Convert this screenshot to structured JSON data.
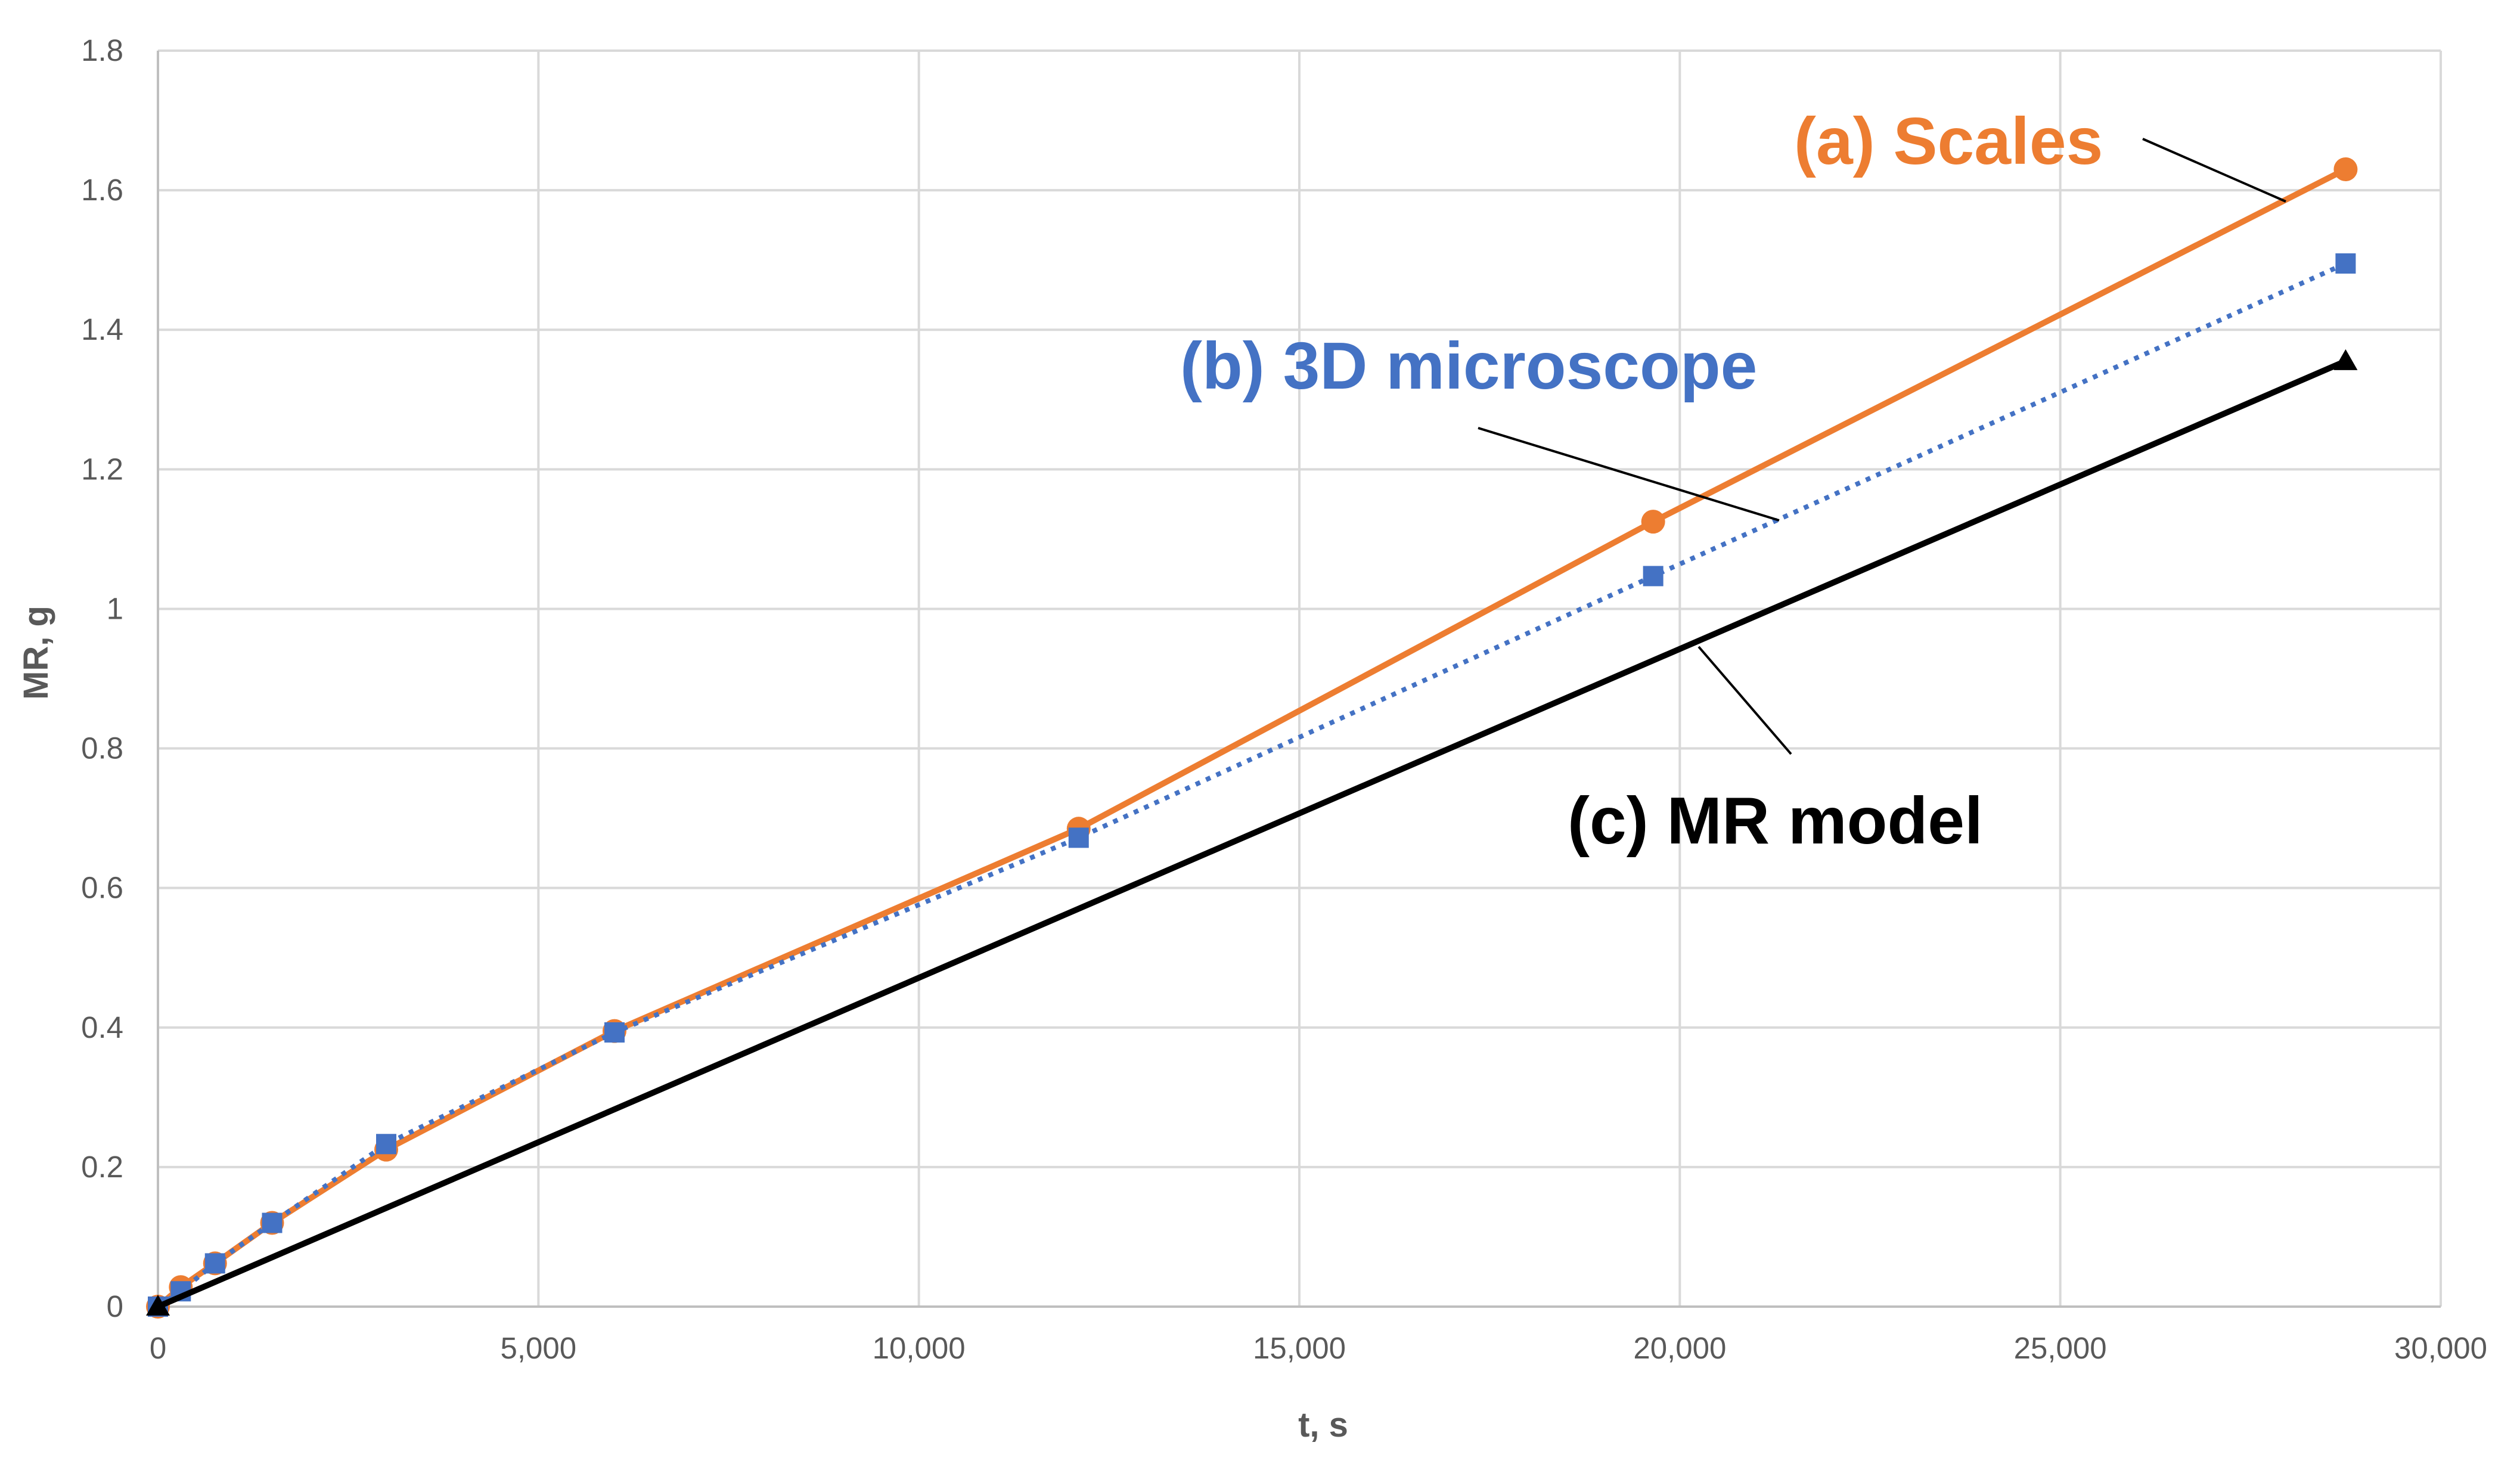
{
  "chart_data": {
    "type": "line",
    "xlabel": "t, s",
    "ylabel": "MR, g",
    "xlim": [
      0,
      30000
    ],
    "ylim": [
      0,
      1.8
    ],
    "xticks": [
      0,
      5000,
      10000,
      15000,
      20000,
      25000,
      30000
    ],
    "xtick_labels": [
      "0",
      "5,000",
      "10,000",
      "15,000",
      "20,000",
      "25,000",
      "30,000"
    ],
    "yticks": [
      0,
      0.2,
      0.4,
      0.6,
      0.8,
      1,
      1.2,
      1.4,
      1.6,
      1.8
    ],
    "ytick_labels": [
      "0",
      "0.2",
      "0.4",
      "0.6",
      "0.8",
      "1",
      "1.2",
      "1.4",
      "1.6",
      "1.8"
    ],
    "grid": true,
    "legend": "none",
    "series": [
      {
        "name": "(a) Scales",
        "color": "#ED7D31",
        "line_style": "solid",
        "marker": "circle",
        "x": [
          0,
          300,
          750,
          1500,
          3000,
          6000,
          12100,
          19650,
          28750
        ],
        "y": [
          0,
          0.028,
          0.062,
          0.12,
          0.225,
          0.395,
          0.685,
          1.125,
          1.63
        ]
      },
      {
        "name": "(b) 3D microscope",
        "color": "#4472C4",
        "line_style": "dotted",
        "marker": "square",
        "x": [
          0,
          300,
          750,
          1500,
          3000,
          6000,
          12100,
          19650,
          28750
        ],
        "y": [
          0,
          0.022,
          0.062,
          0.12,
          0.233,
          0.393,
          0.672,
          1.047,
          1.495
        ]
      },
      {
        "name": "(c) MR model",
        "color": "#000000",
        "line_style": "solid",
        "marker": "triangle",
        "x": [
          0,
          28750
        ],
        "y": [
          0,
          1.355
        ]
      }
    ],
    "annotations": [
      {
        "text": "(a) Scales",
        "color": "#ED7D31",
        "series": 0
      },
      {
        "text": "(b) 3D microscope",
        "color": "#4472C4",
        "series": 1
      },
      {
        "text": "(c) MR model",
        "color": "#000000",
        "series": 2
      }
    ]
  }
}
